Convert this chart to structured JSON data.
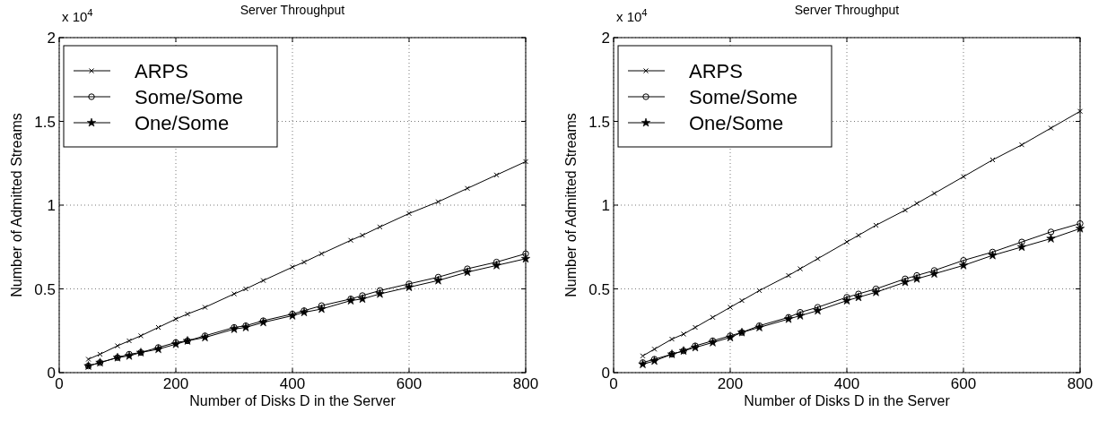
{
  "chart_data": [
    {
      "type": "line",
      "title": "Server Throughput",
      "xlabel": "Number of Disks D in the Server",
      "ylabel": "Number of Admitted Streams",
      "annotations": [
        "x 10$^{4}$"
      ],
      "xlim": [
        0,
        800
      ],
      "xticks": [
        0,
        200,
        400,
        600,
        800
      ],
      "ylim": [
        0,
        2
      ],
      "yticks": [
        0,
        0.5,
        1,
        1.5,
        2
      ],
      "grid": true,
      "legend": "top left",
      "line_style": "solid",
      "x": [
        50,
        70,
        100,
        120,
        140,
        170,
        200,
        220,
        250,
        300,
        320,
        350,
        400,
        420,
        450,
        500,
        520,
        550,
        600,
        650,
        700,
        750,
        800
      ],
      "series": [
        {
          "name": "ARPS",
          "color": "#000000",
          "marker": "cross",
          "values": [
            0.08,
            0.11,
            0.16,
            0.19,
            0.22,
            0.27,
            0.32,
            0.35,
            0.39,
            0.47,
            0.5,
            0.55,
            0.63,
            0.66,
            0.71,
            0.79,
            0.82,
            0.87,
            0.95,
            1.02,
            1.1,
            1.18,
            1.26
          ]
        },
        {
          "name": "Some/Some",
          "color": "#000000",
          "marker": "circle",
          "values": [
            0.04,
            0.06,
            0.09,
            0.11,
            0.12,
            0.15,
            0.18,
            0.19,
            0.22,
            0.27,
            0.28,
            0.31,
            0.35,
            0.37,
            0.4,
            0.44,
            0.46,
            0.49,
            0.53,
            0.57,
            0.62,
            0.66,
            0.71
          ]
        },
        {
          "name": "One/Some",
          "color": "#000000",
          "marker": "star",
          "values": [
            0.04,
            0.06,
            0.09,
            0.1,
            0.12,
            0.14,
            0.17,
            0.19,
            0.21,
            0.26,
            0.27,
            0.3,
            0.34,
            0.36,
            0.38,
            0.43,
            0.44,
            0.47,
            0.51,
            0.55,
            0.6,
            0.64,
            0.68
          ]
        }
      ]
    },
    {
      "type": "line",
      "title": "Server Throughput",
      "xlabel": "Number of Disks D in the Server",
      "ylabel": "Number of Admitted Streams",
      "annotations": [
        "x 10$^{4}$"
      ],
      "xlim": [
        0,
        800
      ],
      "xticks": [
        0,
        200,
        400,
        600,
        800
      ],
      "ylim": [
        0,
        2
      ],
      "yticks": [
        0,
        0.5,
        1,
        1.5,
        2
      ],
      "grid": true,
      "legend": "top left",
      "line_style": "solid",
      "x": [
        50,
        70,
        100,
        120,
        140,
        170,
        200,
        220,
        250,
        300,
        320,
        350,
        400,
        420,
        450,
        500,
        520,
        550,
        600,
        650,
        700,
        750,
        800
      ],
      "series": [
        {
          "name": "ARPS",
          "color": "#000000",
          "marker": "cross",
          "values": [
            0.1,
            0.14,
            0.2,
            0.23,
            0.27,
            0.33,
            0.39,
            0.43,
            0.49,
            0.58,
            0.62,
            0.68,
            0.78,
            0.82,
            0.88,
            0.97,
            1.01,
            1.07,
            1.17,
            1.27,
            1.36,
            1.46,
            1.56
          ]
        },
        {
          "name": "Some/Some",
          "color": "#000000",
          "marker": "circle",
          "values": [
            0.06,
            0.08,
            0.11,
            0.13,
            0.16,
            0.19,
            0.22,
            0.24,
            0.28,
            0.33,
            0.36,
            0.39,
            0.45,
            0.47,
            0.5,
            0.56,
            0.58,
            0.61,
            0.67,
            0.72,
            0.78,
            0.84,
            0.89
          ]
        },
        {
          "name": "One/Some",
          "color": "#000000",
          "marker": "star",
          "values": [
            0.05,
            0.07,
            0.11,
            0.13,
            0.15,
            0.18,
            0.21,
            0.24,
            0.27,
            0.32,
            0.34,
            0.37,
            0.43,
            0.45,
            0.48,
            0.54,
            0.56,
            0.59,
            0.64,
            0.7,
            0.75,
            0.8,
            0.86
          ]
        }
      ]
    }
  ]
}
